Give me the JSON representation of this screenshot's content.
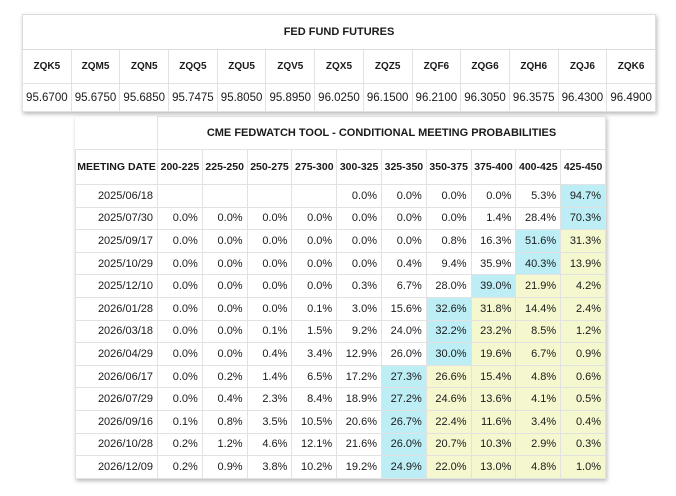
{
  "futures": {
    "title": "FED FUND FUTURES",
    "headers": [
      "ZQK5",
      "ZQM5",
      "ZQN5",
      "ZQQ5",
      "ZQU5",
      "ZQV5",
      "ZQX5",
      "ZQZ5",
      "ZQF6",
      "ZQG6",
      "ZQH6",
      "ZQJ6",
      "ZQK6"
    ],
    "values": [
      "95.6700",
      "95.6750",
      "95.6850",
      "95.7475",
      "95.8050",
      "95.8950",
      "96.0250",
      "96.1500",
      "96.2100",
      "96.3050",
      "96.3575",
      "96.4300",
      "96.4900"
    ]
  },
  "probabilities": {
    "title": "CME FEDWATCH TOOL - CONDITIONAL MEETING PROBABILITIES",
    "date_header": "MEETING DATE",
    "columns": [
      "200-225",
      "225-250",
      "250-275",
      "275-300",
      "300-325",
      "325-350",
      "350-375",
      "375-400",
      "400-425",
      "425-450"
    ],
    "colors": {
      "highest": "#bdeef5",
      "above": "#f5f7cf",
      "none": "#ffffff"
    },
    "rows": [
      {
        "date": "2025/06/18",
        "cells": [
          "",
          "",
          "",
          "",
          "0.0%",
          "0.0%",
          "0.0%",
          "0.0%",
          "5.3%",
          "94.7%"
        ],
        "hi": 9
      },
      {
        "date": "2025/07/30",
        "cells": [
          "0.0%",
          "0.0%",
          "0.0%",
          "0.0%",
          "0.0%",
          "0.0%",
          "0.0%",
          "1.4%",
          "28.4%",
          "70.3%"
        ],
        "hi": 9
      },
      {
        "date": "2025/09/17",
        "cells": [
          "0.0%",
          "0.0%",
          "0.0%",
          "0.0%",
          "0.0%",
          "0.0%",
          "0.8%",
          "16.3%",
          "51.6%",
          "31.3%"
        ],
        "hi": 8
      },
      {
        "date": "2025/10/29",
        "cells": [
          "0.0%",
          "0.0%",
          "0.0%",
          "0.0%",
          "0.0%",
          "0.4%",
          "9.4%",
          "35.9%",
          "40.3%",
          "13.9%"
        ],
        "hi": 8
      },
      {
        "date": "2025/12/10",
        "cells": [
          "0.0%",
          "0.0%",
          "0.0%",
          "0.0%",
          "0.3%",
          "6.7%",
          "28.0%",
          "39.0%",
          "21.9%",
          "4.2%"
        ],
        "hi": 7
      },
      {
        "date": "2026/01/28",
        "cells": [
          "0.0%",
          "0.0%",
          "0.0%",
          "0.1%",
          "3.0%",
          "15.6%",
          "32.6%",
          "31.8%",
          "14.4%",
          "2.4%"
        ],
        "hi": 6
      },
      {
        "date": "2026/03/18",
        "cells": [
          "0.0%",
          "0.0%",
          "0.1%",
          "1.5%",
          "9.2%",
          "24.0%",
          "32.2%",
          "23.2%",
          "8.5%",
          "1.2%"
        ],
        "hi": 6
      },
      {
        "date": "2026/04/29",
        "cells": [
          "0.0%",
          "0.0%",
          "0.4%",
          "3.4%",
          "12.9%",
          "26.0%",
          "30.0%",
          "19.6%",
          "6.7%",
          "0.9%"
        ],
        "hi": 6
      },
      {
        "date": "2026/06/17",
        "cells": [
          "0.0%",
          "0.2%",
          "1.4%",
          "6.5%",
          "17.2%",
          "27.3%",
          "26.6%",
          "15.4%",
          "4.8%",
          "0.6%"
        ],
        "hi": 5
      },
      {
        "date": "2026/07/29",
        "cells": [
          "0.0%",
          "0.4%",
          "2.3%",
          "8.4%",
          "18.9%",
          "27.2%",
          "24.6%",
          "13.6%",
          "4.1%",
          "0.5%"
        ],
        "hi": 5
      },
      {
        "date": "2026/09/16",
        "cells": [
          "0.1%",
          "0.8%",
          "3.5%",
          "10.5%",
          "20.6%",
          "26.7%",
          "22.4%",
          "11.6%",
          "3.4%",
          "0.4%"
        ],
        "hi": 5
      },
      {
        "date": "2026/10/28",
        "cells": [
          "0.2%",
          "1.2%",
          "4.6%",
          "12.1%",
          "21.6%",
          "26.0%",
          "20.7%",
          "10.3%",
          "2.9%",
          "0.3%"
        ],
        "hi": 5
      },
      {
        "date": "2026/12/09",
        "cells": [
          "0.2%",
          "0.9%",
          "3.8%",
          "10.2%",
          "19.2%",
          "24.9%",
          "22.0%",
          "13.0%",
          "4.8%",
          "1.0%"
        ],
        "hi": 5
      }
    ]
  }
}
